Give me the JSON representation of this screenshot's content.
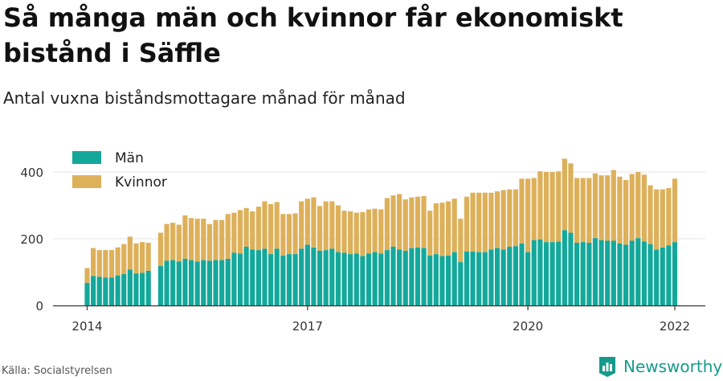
{
  "title": "Så många män och kvinnor får ekonomiskt bistånd i Säffle",
  "subtitle": "Antal vuxna biståndsmottagare månad för månad",
  "source": "Källa: Socialstyrelsen",
  "brand": "Newsworthy",
  "colors": {
    "men": "#14a89b",
    "women": "#ddb05a",
    "grid": "#e4e4e4",
    "axis": "#333333",
    "brand": "#169a8c"
  },
  "chart_data": {
    "type": "bar",
    "stacked": true,
    "legend": [
      {
        "name": "Män",
        "color": "#14a89b"
      },
      {
        "name": "Kvinnor",
        "color": "#ddb05a"
      }
    ],
    "legend_position": "top-left",
    "ylim": [
      0,
      450
    ],
    "yticks": [
      0,
      200,
      400
    ],
    "xticks": [
      "2014",
      "2017",
      "2020",
      "2022"
    ],
    "grid": true,
    "x": [
      "2014-01",
      "2014-02",
      "2014-03",
      "2014-04",
      "2014-05",
      "2014-06",
      "2014-07",
      "2014-08",
      "2014-09",
      "2014-10",
      "2014-11",
      "2014-12",
      "2015-01",
      "2015-02",
      "2015-03",
      "2015-04",
      "2015-05",
      "2015-06",
      "2015-07",
      "2015-08",
      "2015-09",
      "2015-10",
      "2015-11",
      "2015-12",
      "2016-01",
      "2016-02",
      "2016-03",
      "2016-04",
      "2016-05",
      "2016-06",
      "2016-07",
      "2016-08",
      "2016-09",
      "2016-10",
      "2016-11",
      "2016-12",
      "2017-01",
      "2017-02",
      "2017-03",
      "2017-04",
      "2017-05",
      "2017-06",
      "2017-07",
      "2017-08",
      "2017-09",
      "2017-10",
      "2017-11",
      "2017-12",
      "2018-01",
      "2018-02",
      "2018-03",
      "2018-04",
      "2018-05",
      "2018-06",
      "2018-07",
      "2018-08",
      "2018-09",
      "2018-10",
      "2018-11",
      "2018-12",
      "2019-01",
      "2019-02",
      "2019-03",
      "2019-04",
      "2019-05",
      "2019-06",
      "2019-07",
      "2019-08",
      "2019-09",
      "2019-10",
      "2019-11",
      "2019-12",
      "2020-01",
      "2020-02",
      "2020-03",
      "2020-04",
      "2020-05",
      "2020-06",
      "2020-07",
      "2020-08",
      "2020-09",
      "2020-10",
      "2020-11",
      "2020-12",
      "2021-01",
      "2021-02",
      "2021-03",
      "2021-04",
      "2021-05",
      "2021-06",
      "2021-07",
      "2021-08",
      "2021-09",
      "2021-10",
      "2021-11",
      "2021-12",
      "2022-01"
    ],
    "series": [
      {
        "name": "Män",
        "values": [
          68,
          88,
          86,
          84,
          84,
          90,
          94,
          108,
          96,
          98,
          104,
          null,
          118,
          134,
          136,
          132,
          140,
          136,
          132,
          136,
          134,
          136,
          136,
          140,
          158,
          156,
          176,
          168,
          166,
          170,
          154,
          170,
          150,
          154,
          154,
          170,
          182,
          174,
          164,
          166,
          170,
          160,
          158,
          154,
          156,
          148,
          156,
          160,
          156,
          166,
          176,
          168,
          164,
          172,
          174,
          172,
          150,
          154,
          148,
          150,
          160,
          130,
          162,
          162,
          160,
          160,
          168,
          172,
          168,
          176,
          178,
          186,
          160,
          196,
          198,
          190,
          190,
          192,
          226,
          218,
          188,
          190,
          188,
          202,
          196,
          194,
          194,
          186,
          182,
          194,
          202,
          192,
          184,
          168,
          174,
          180,
          190
        ]
      },
      {
        "name": "Kvinnor",
        "values": [
          44,
          84,
          80,
          82,
          82,
          84,
          90,
          98,
          90,
          92,
          84,
          null,
          100,
          110,
          112,
          110,
          130,
          126,
          128,
          124,
          110,
          120,
          120,
          134,
          120,
          130,
          116,
          114,
          130,
          142,
          150,
          140,
          124,
          120,
          122,
          142,
          138,
          150,
          134,
          146,
          142,
          140,
          126,
          128,
          122,
          132,
          132,
          130,
          132,
          156,
          154,
          166,
          154,
          152,
          152,
          156,
          134,
          152,
          160,
          162,
          160,
          130,
          164,
          176,
          178,
          178,
          170,
          170,
          178,
          172,
          170,
          194,
          220,
          186,
          204,
          210,
          210,
          210,
          214,
          208,
          194,
          192,
          194,
          194,
          194,
          196,
          212,
          200,
          194,
          200,
          198,
          200,
          176,
          180,
          174,
          172,
          190
        ]
      }
    ]
  }
}
